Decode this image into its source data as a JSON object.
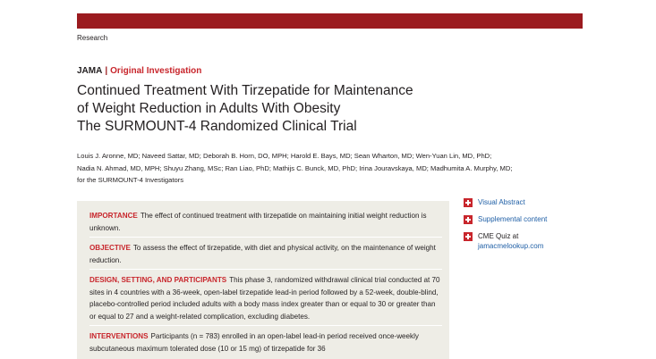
{
  "header": {
    "section": "Research",
    "journal": "JAMA",
    "separator": "|",
    "article_type": "Original Investigation"
  },
  "title_lines": [
    "Continued Treatment With Tirzepatide for Maintenance",
    "of Weight Reduction in Adults With Obesity",
    "The SURMOUNT-4 Randomized Clinical Trial"
  ],
  "author_lines": [
    "Louis J. Aronne, MD; Naveed Sattar, MD; Deborah B. Horn, DO, MPH; Harold E. Bays, MD; Sean Wharton, MD; Wen-Yuan Lin, MD, PhD;",
    "Nadia N. Ahmad, MD, MPH; Shuyu Zhang, MSc; Ran Liao, PhD; Mathijs C. Bunck, MD, PhD; Irina Jouravskaya, MD; Madhumita A. Murphy, MD;",
    "for the SURMOUNT-4 Investigators"
  ],
  "sidebar": {
    "visual_abstract": "Visual Abstract",
    "supplemental_content": "Supplemental content",
    "cme_quiz": "CME Quiz at",
    "cme_url": "jamacmelookup.com"
  },
  "abstract": {
    "importance": {
      "lead": "IMPORTANCE",
      "text": "The effect of continued treatment with tirzepatide on maintaining initial weight reduction is unknown."
    },
    "objective": {
      "lead": "OBJECTIVE",
      "text": "To assess the effect of tirzepatide, with diet and physical activity, on the maintenance of weight reduction."
    },
    "design": {
      "lead": "DESIGN, SETTING, AND PARTICIPANTS",
      "text": "This phase 3, randomized withdrawal clinical trial conducted at 70 sites in 4 countries with a 36-week, open-label tirzepatide lead-in period followed by a 52-week, double-blind, placebo-controlled period included adults with a body mass index greater than or equal to 30 or greater than or equal to 27 and a weight-related complication, excluding diabetes."
    },
    "interventions": {
      "lead": "INTERVENTIONS",
      "text": "Participants (n = 783) enrolled in an open-label lead-in period received once-weekly subcutaneous maximum tolerated dose (10 or 15 mg) of tirzepatide for 36"
    }
  }
}
